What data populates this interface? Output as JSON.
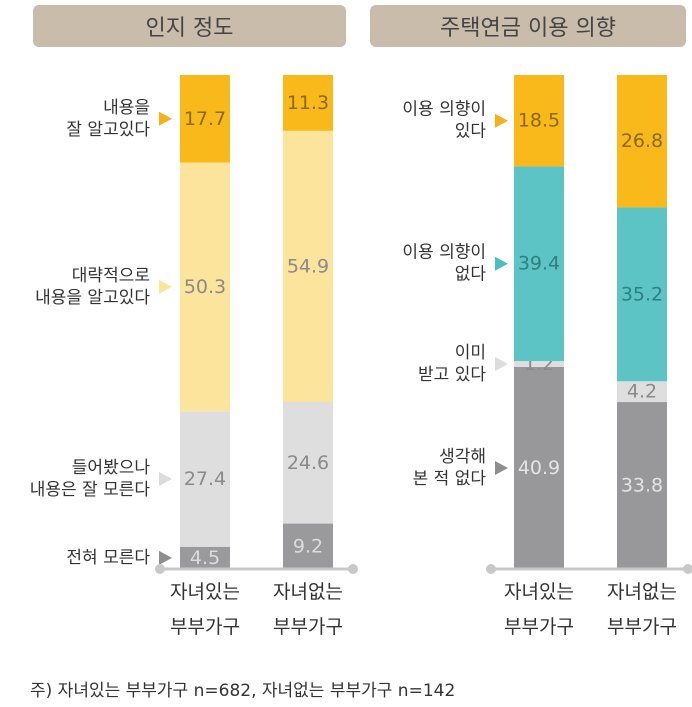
{
  "footnote": "주) 자녀있는 부부가구 n=682, 자녀없는 부부가구 n=142",
  "chart_data": [
    {
      "type": "bar",
      "stacked": true,
      "title": "인지 정도",
      "categories": [
        "자녀있는 부부가구",
        "자녀없는 부부가구"
      ],
      "category_lines": [
        [
          "자녀있는",
          "부부가구"
        ],
        [
          "자녀없는",
          "부부가구"
        ]
      ],
      "series": [
        {
          "name": "전혀 모른다",
          "label_lines": [
            "전혀 모른다"
          ],
          "values": [
            4.5,
            9.2
          ],
          "color": "#9a9a9c",
          "text_color": "#dcdcdc",
          "arrow_color": "#8e8e90"
        },
        {
          "name": "들어봤으나 내용은 잘 모른다",
          "label_lines": [
            "들어봤으나",
            "내용은 잘 모른다"
          ],
          "values": [
            27.4,
            24.6
          ],
          "color": "#dededf",
          "text_color": "#8a8a8a",
          "arrow_color": "#dcdcdc"
        },
        {
          "name": "대략적으로 내용을 알고있다",
          "label_lines": [
            "대략적으로",
            "내용을 알고있다"
          ],
          "values": [
            50.3,
            54.9
          ],
          "color": "#fde49c",
          "text_color": "#8a8a8a",
          "arrow_color": "#fde49c"
        },
        {
          "name": "내용을 잘 알고있다",
          "label_lines": [
            "내용을",
            "잘 알고있다"
          ],
          "values": [
            17.7,
            11.3
          ],
          "color": "#f9b91b",
          "text_color": "#8a6a10",
          "arrow_color": "#f5b11a"
        }
      ],
      "ylim": [
        0,
        100
      ]
    },
    {
      "type": "bar",
      "stacked": true,
      "title": "주택연금 이용 의향",
      "categories": [
        "자녀있는 부부가구",
        "자녀없는 부부가구"
      ],
      "category_lines": [
        [
          "자녀있는",
          "부부가구"
        ],
        [
          "자녀없는",
          "부부가구"
        ]
      ],
      "series": [
        {
          "name": "생각해 본 적 없다",
          "label_lines": [
            "생각해",
            "본 적 없다"
          ],
          "values": [
            40.9,
            33.8
          ],
          "color": "#98989a",
          "text_color": "#e4e4e4",
          "arrow_color": "#8e8e90"
        },
        {
          "name": "이미 받고 있다",
          "label_lines": [
            "이미",
            "받고 있다"
          ],
          "values": [
            1.2,
            4.2
          ],
          "color": "#dededf",
          "text_color": "#8a8a8a",
          "arrow_color": "#dcdcdc"
        },
        {
          "name": "이용 의향이 없다",
          "label_lines": [
            "이용 의향이",
            "없다"
          ],
          "values": [
            39.4,
            35.2
          ],
          "color": "#5cc4c4",
          "text_color": "#2e8080",
          "arrow_color": "#4bbfbf"
        },
        {
          "name": "이용 의향이 있다",
          "label_lines": [
            "이용 의향이",
            "있다"
          ],
          "values": [
            18.5,
            26.8
          ],
          "color": "#f9b91b",
          "text_color": "#8a6a10",
          "arrow_color": "#f5b11a"
        }
      ],
      "ylim": [
        0,
        100
      ]
    }
  ]
}
